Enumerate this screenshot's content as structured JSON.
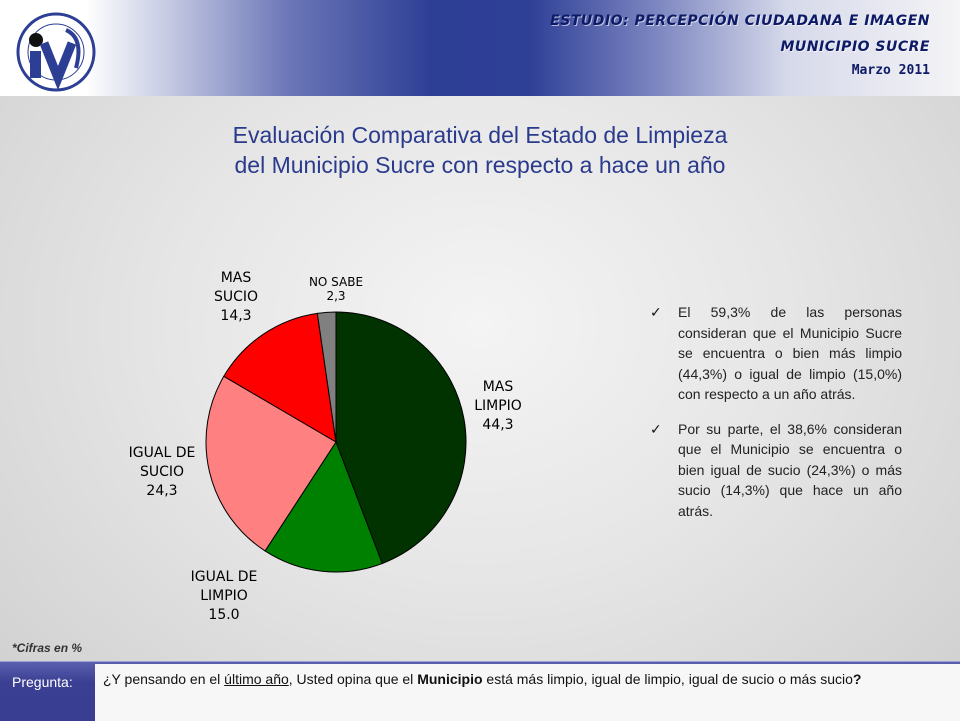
{
  "header": {
    "title": "ESTUDIO: PERCEPCIÓN CIUDADANA E IMAGEN",
    "subtitle": "MUNICIPIO SUCRE",
    "date": "Marzo 2011",
    "logo": {
      "letters": "IVAD",
      "ring_text": "Instituto Venezolano de Análisis de Datos C.A."
    }
  },
  "slide_title_line1": "Evaluación Comparativa del Estado de Limpieza",
  "slide_title_line2": "del Municipio Sucre con respecto a hace un año",
  "chart_data": {
    "type": "pie",
    "title": "",
    "slices": [
      {
        "name": "MAS LIMPIO",
        "label_lines": [
          "MAS",
          "LIMPIO"
        ],
        "value": 44.3,
        "value_text": "44,3",
        "color": "#003300"
      },
      {
        "name": "IGUAL DE LIMPIO",
        "label_lines": [
          "IGUAL DE",
          "LIMPIO"
        ],
        "value": 15.0,
        "value_text": "15.0",
        "color": "#008000"
      },
      {
        "name": "IGUAL DE SUCIO",
        "label_lines": [
          "IGUAL DE",
          "SUCIO"
        ],
        "value": 24.3,
        "value_text": "24,3",
        "color": "#ff8080"
      },
      {
        "name": "MAS SUCIO",
        "label_lines": [
          "MAS",
          "SUCIO"
        ],
        "value": 14.3,
        "value_text": "14,3",
        "color": "#ff0000"
      },
      {
        "name": "NO SABE",
        "label_lines": [
          "NO SABE"
        ],
        "value": 2.3,
        "value_text": "2,3",
        "color": "#808080"
      }
    ],
    "start": "12 o'clock",
    "direction": "clockwise"
  },
  "bullets": [
    "El 59,3% de las personas consideran que el Municipio Sucre se encuentra o bien más limpio (44,3%) o igual de limpio (15,0%) con respecto a un año atrás.",
    "Por su parte, el 38,6% consideran que el Municipio se encuentra o bien igual de sucio (24,3%) o más sucio (14,3%) que hace un año atrás."
  ],
  "bullet_icon": "checkmark-icon",
  "note": "*Cifras en %",
  "question": {
    "label": "Pregunta:",
    "part1": "¿Y pensando en el ",
    "underlined": "último año",
    "part2": ", Usted opina que el ",
    "bold": "Municipio",
    "part3": " está más limpio, igual de limpio, igual de sucio o más sucio",
    "end": "?"
  }
}
